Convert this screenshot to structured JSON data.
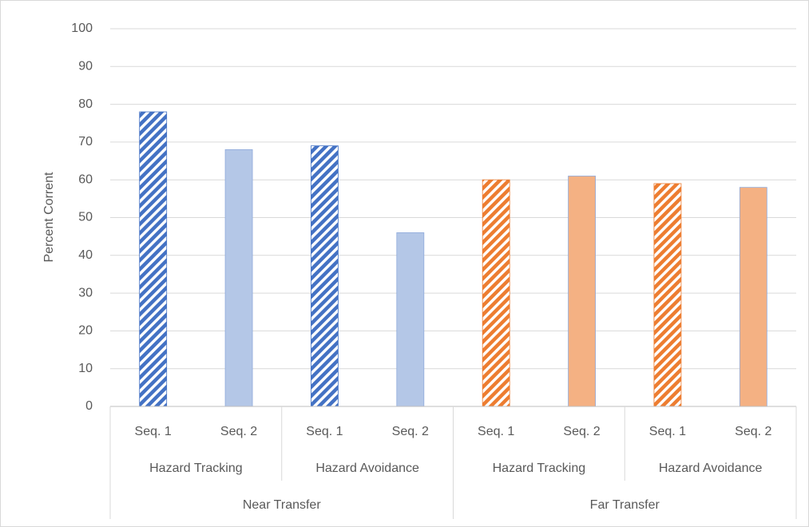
{
  "chart_data": {
    "type": "bar",
    "y_label": "Percent Corrent",
    "categories": [
      "Seq. 1",
      "Seq. 2",
      "Seq. 1",
      "Seq. 2",
      "Seq. 1",
      "Seq. 2",
      "Seq. 1",
      "Seq. 2"
    ],
    "subgroups": [
      "Hazard Tracking",
      "Hazard Avoidance",
      "Hazard Tracking",
      "Hazard Avoidance"
    ],
    "groups": [
      "Near Transfer",
      "Far Transfer"
    ],
    "values": [
      78,
      68,
      69,
      46,
      60,
      61,
      59,
      58
    ],
    "colors": [
      "#4472c4",
      "#b4c7e7",
      "#4472c4",
      "#b4c7e7",
      "#ed7d31",
      "#f4b183",
      "#ed7d31",
      "#f4b183"
    ],
    "hatch": [
      true,
      false,
      true,
      false,
      true,
      false,
      true,
      false
    ],
    "ylim": [
      0,
      100
    ],
    "yticks": [
      0,
      10,
      20,
      30,
      40,
      50,
      60,
      70,
      80,
      90,
      100
    ],
    "grid": true
  }
}
